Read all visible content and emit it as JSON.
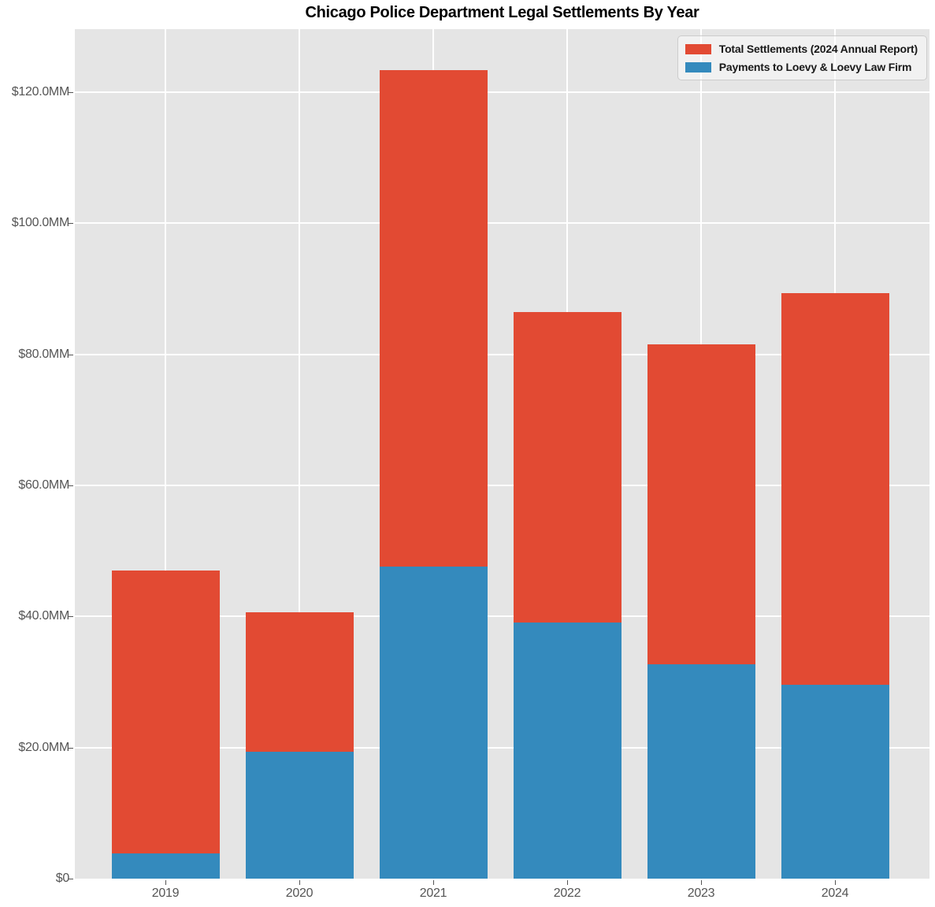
{
  "chart_data": {
    "type": "bar",
    "stacked": true,
    "title": "Chicago Police Department Legal Settlements By Year",
    "categories": [
      "2019",
      "2020",
      "2021",
      "2022",
      "2023",
      "2024"
    ],
    "series": [
      {
        "name": "Total Settlements (2024 Annual Report)",
        "role": "total",
        "color": "#E24A33",
        "values": [
          47.0,
          40.6,
          123.3,
          86.5,
          81.5,
          89.3
        ]
      },
      {
        "name": "Payments to Loevy & Loevy Law Firm",
        "role": "component",
        "color": "#348ABD",
        "values": [
          3.9,
          19.3,
          47.6,
          39.1,
          32.7,
          29.6
        ]
      }
    ],
    "value_unit": "millions USD",
    "ylim": [
      0,
      129.6
    ],
    "yticks": {
      "values": [
        0,
        20,
        40,
        60,
        80,
        100,
        120
      ],
      "labels": [
        "$0",
        "$20.0MM",
        "$40.0MM",
        "$60.0MM",
        "$80.0MM",
        "$100.0MM",
        "$120.0MM"
      ]
    },
    "xlabel": "",
    "ylabel": "",
    "grid": true,
    "legend_position": "upper right",
    "colors": {
      "plot_background": "#E5E5E5",
      "grid": "#FFFFFF",
      "tick_text": "#555555",
      "title_text": "#000000"
    }
  }
}
